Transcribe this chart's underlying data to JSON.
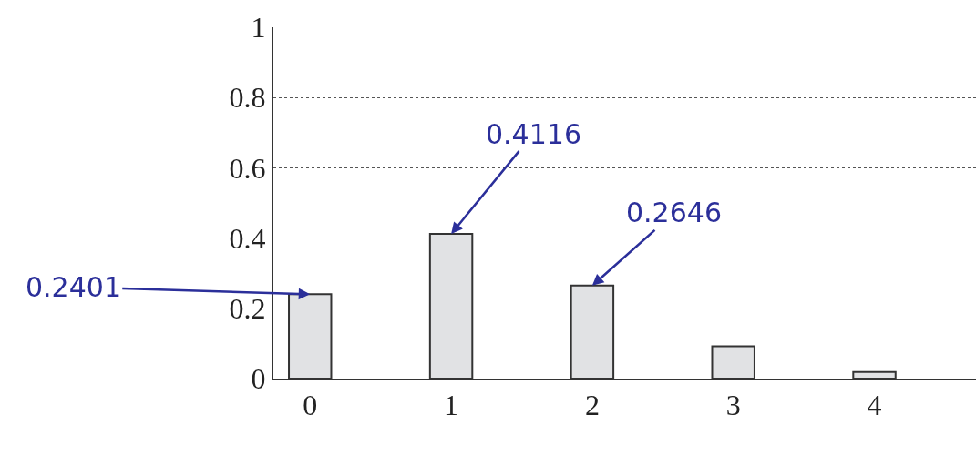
{
  "chart_data": {
    "type": "bar",
    "categories": [
      "0",
      "1",
      "2",
      "3",
      "4"
    ],
    "values": [
      0.2401,
      0.4116,
      0.2646,
      0.092,
      0.019
    ],
    "color": "#e1e2e4",
    "ylim": [
      0,
      1
    ],
    "yticks": [
      0,
      0.2,
      0.4,
      0.6,
      0.8,
      1
    ],
    "grid": "y",
    "annotations": [
      {
        "text": "0.2401",
        "x": "0",
        "y": 0.2401
      },
      {
        "text": "0.4116",
        "x": "1",
        "y": 0.4116
      },
      {
        "text": "0.2646",
        "x": "2",
        "y": 0.2646
      }
    ]
  }
}
